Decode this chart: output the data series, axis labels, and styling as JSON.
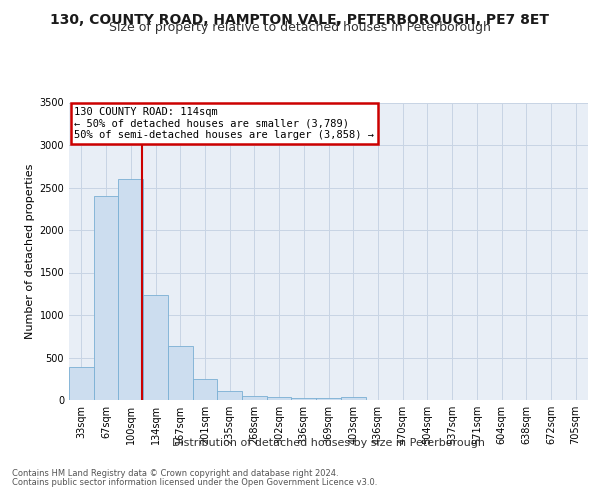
{
  "title": "130, COUNTY ROAD, HAMPTON VALE, PETERBOROUGH, PE7 8ET",
  "subtitle": "Size of property relative to detached houses in Peterborough",
  "xlabel": "Distribution of detached houses by size in Peterborough",
  "ylabel": "Number of detached properties",
  "footnote1": "Contains HM Land Registry data © Crown copyright and database right 2024.",
  "footnote2": "Contains public sector information licensed under the Open Government Licence v3.0.",
  "bin_labels": [
    "33sqm",
    "67sqm",
    "100sqm",
    "134sqm",
    "167sqm",
    "201sqm",
    "235sqm",
    "268sqm",
    "302sqm",
    "336sqm",
    "369sqm",
    "403sqm",
    "436sqm",
    "470sqm",
    "504sqm",
    "537sqm",
    "571sqm",
    "604sqm",
    "638sqm",
    "672sqm",
    "705sqm"
  ],
  "bar_values": [
    390,
    2400,
    2600,
    1230,
    630,
    250,
    105,
    50,
    40,
    25,
    20,
    40,
    0,
    0,
    0,
    0,
    0,
    0,
    0,
    0,
    0
  ],
  "bar_color": "#ccddef",
  "bar_edge_color": "#7aafd4",
  "grid_color": "#c8d4e4",
  "bg_color": "#e8eef6",
  "vline_color": "#cc0000",
  "vline_pos": 2.45,
  "annotation_line1": "130 COUNTY ROAD: 114sqm",
  "annotation_line2": "← 50% of detached houses are smaller (3,789)",
  "annotation_line3": "50% of semi-detached houses are larger (3,858) →",
  "annotation_box_color": "#cc0000",
  "ylim": [
    0,
    3500
  ],
  "yticks": [
    0,
    500,
    1000,
    1500,
    2000,
    2500,
    3000,
    3500
  ],
  "title_fontsize": 10,
  "subtitle_fontsize": 9,
  "ylabel_fontsize": 8,
  "xlabel_fontsize": 8,
  "tick_fontsize": 7,
  "annotation_fontsize": 7.5,
  "footnote_fontsize": 6
}
